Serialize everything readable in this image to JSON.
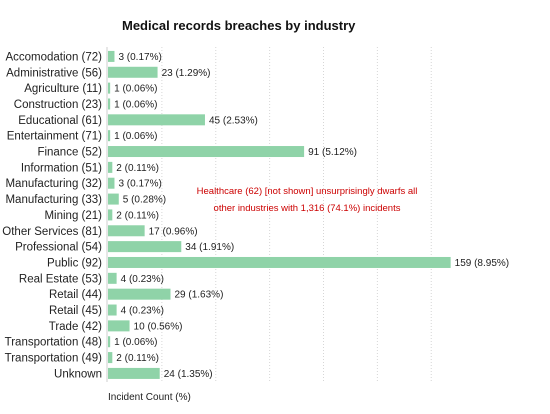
{
  "chart_data": {
    "type": "bar",
    "orientation": "horizontal",
    "title": "Medical records breaches by industry",
    "xlabel": "Incident Count (%)",
    "ylabel": "",
    "xlim": [
      0,
      170
    ],
    "grid": true,
    "categories": [
      "Accomodation (72)",
      "Administrative (56)",
      "Agriculture (11)",
      "Construction (23)",
      "Educational (61)",
      "Entertainment (71)",
      "Finance (52)",
      "Information (51)",
      "Manufacturing (32)",
      "Manufacturing (33)",
      "Mining (21)",
      "Other Services (81)",
      "Professional (54)",
      "Public (92)",
      "Real Estate (53)",
      "Retail (44)",
      "Retail (45)",
      "Trade (42)",
      "Transportation (48)",
      "Transportation (49)",
      "Unknown"
    ],
    "values": [
      3,
      23,
      1,
      1,
      45,
      1,
      91,
      2,
      3,
      5,
      2,
      17,
      34,
      159,
      4,
      29,
      4,
      10,
      1,
      2,
      24
    ],
    "value_labels": [
      "3 (0.17%)",
      "23 (1.29%)",
      "1 (0.06%)",
      "1 (0.06%)",
      "45 (2.53%)",
      "1 (0.06%)",
      "91 (5.12%)",
      "2 (0.11%)",
      "3 (0.17%)",
      "5 (0.28%)",
      "2 (0.11%)",
      "17 (0.96%)",
      "34 (1.91%)",
      "159 (8.95%)",
      "4 (0.23%)",
      "29 (1.63%)",
      "4 (0.23%)",
      "10 (0.56%)",
      "1 (0.06%)",
      "2 (0.11%)",
      "24 (1.35%)"
    ],
    "annotation": {
      "lines": [
        "Healthcare (62) [not shown] unsurprisingly dwarfs all",
        "other industries with 1,316 (74.1%) incidents"
      ],
      "color": "#cc0000"
    },
    "bar_color": "#8fd3a8"
  }
}
